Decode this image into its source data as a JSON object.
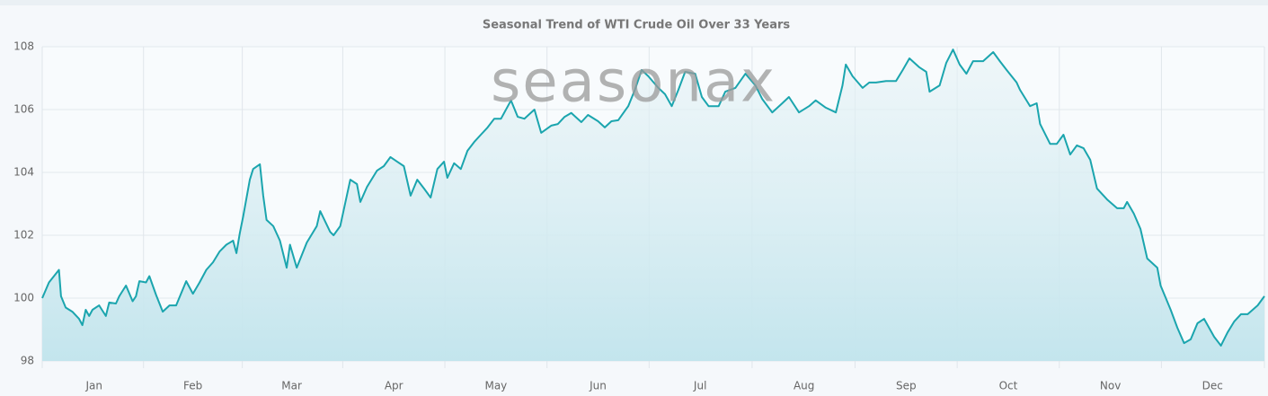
{
  "chart_data": {
    "type": "line",
    "title": "Seasonal Trend of WTI Crude Oil Over 33 Years",
    "watermark": "seasonax",
    "x": [
      0,
      2,
      5,
      5.6,
      7,
      9,
      11,
      12,
      13,
      14,
      15,
      17,
      19,
      20,
      22,
      23,
      25,
      27,
      28,
      29,
      31,
      32,
      34,
      36,
      38,
      40,
      43,
      45,
      47,
      49,
      51,
      53,
      55,
      57,
      58,
      59,
      60,
      62,
      63,
      65,
      66,
      67,
      69,
      71,
      73,
      74,
      76,
      79,
      82,
      83,
      86,
      87,
      89,
      92,
      94,
      95,
      97,
      100,
      102,
      104,
      106,
      108,
      110,
      112,
      114,
      116,
      118,
      120,
      121,
      123,
      125,
      127,
      129,
      131,
      133,
      135,
      137,
      140,
      142,
      144,
      147,
      149,
      152,
      154,
      156,
      158,
      161,
      163,
      166,
      168,
      170,
      172,
      175,
      177,
      179,
      181,
      184,
      186,
      188,
      190,
      192,
      195,
      197,
      199,
      202,
      204,
      207,
      210,
      213,
      215,
      218,
      221,
      223,
      226,
      229,
      231,
      234,
      237,
      239,
      240,
      242,
      245,
      247,
      249,
      252,
      255,
      257,
      259,
      262,
      264,
      265,
      268,
      270,
      272,
      274,
      276,
      278,
      281,
      284,
      286,
      288,
      291,
      292,
      295,
      297,
      298,
      301,
      303,
      305,
      307,
      309,
      311,
      313,
      315,
      318,
      321,
      323,
      324,
      326,
      328,
      330,
      333,
      334,
      337,
      339,
      341,
      343,
      345,
      347,
      350,
      352,
      354,
      356,
      358,
      360,
      363,
      365
    ],
    "values": [
      100.0,
      100.5,
      100.9,
      100.06,
      99.7,
      99.57,
      99.34,
      99.14,
      99.63,
      99.43,
      99.63,
      99.77,
      99.43,
      99.86,
      99.83,
      100.06,
      100.4,
      99.9,
      100.06,
      100.54,
      100.5,
      100.7,
      100.1,
      99.57,
      99.77,
      99.77,
      100.54,
      100.14,
      100.5,
      100.9,
      101.14,
      101.49,
      101.7,
      101.83,
      101.43,
      102.06,
      102.6,
      103.77,
      104.11,
      104.26,
      103.26,
      102.49,
      102.29,
      101.83,
      100.97,
      101.7,
      100.97,
      101.77,
      102.29,
      102.77,
      102.11,
      102.0,
      102.29,
      103.77,
      103.63,
      103.06,
      103.54,
      104.06,
      104.2,
      104.49,
      104.34,
      104.2,
      103.26,
      103.77,
      103.49,
      103.2,
      104.11,
      104.34,
      103.83,
      104.29,
      104.11,
      104.69,
      104.97,
      105.2,
      105.43,
      105.71,
      105.71,
      106.29,
      105.77,
      105.71,
      106.0,
      105.26,
      105.49,
      105.54,
      105.77,
      105.89,
      105.6,
      105.83,
      105.63,
      105.43,
      105.63,
      105.66,
      106.11,
      106.63,
      107.26,
      107.06,
      106.69,
      106.49,
      106.11,
      106.63,
      107.2,
      107.14,
      106.4,
      106.11,
      106.11,
      106.57,
      106.69,
      107.14,
      106.77,
      106.34,
      105.91,
      106.2,
      106.4,
      105.91,
      106.11,
      106.29,
      106.06,
      105.91,
      106.77,
      107.43,
      107.06,
      106.69,
      106.86,
      106.86,
      106.91,
      106.91,
      107.26,
      107.63,
      107.34,
      107.2,
      106.57,
      106.77,
      107.49,
      107.91,
      107.43,
      107.14,
      107.54,
      107.54,
      107.83,
      107.54,
      107.26,
      106.86,
      106.63,
      106.11,
      106.2,
      105.54,
      104.91,
      104.91,
      105.2,
      104.57,
      104.86,
      104.77,
      104.4,
      103.49,
      103.14,
      102.86,
      102.86,
      103.06,
      102.69,
      102.2,
      101.26,
      100.97,
      100.4,
      99.63,
      99.06,
      98.57,
      98.69,
      99.2,
      99.34,
      98.77,
      98.49,
      98.91,
      99.26,
      99.49,
      99.49,
      99.77,
      100.06
    ],
    "color": "#1ba5ae",
    "xlim": [
      0,
      365
    ],
    "xticks": [
      {
        "value": 15.5,
        "label": "Jan"
      },
      {
        "value": 45,
        "label": "Feb"
      },
      {
        "value": 74.5,
        "label": "Mar"
      },
      {
        "value": 105,
        "label": "Apr"
      },
      {
        "value": 135.5,
        "label": "May"
      },
      {
        "value": 166,
        "label": "Jun"
      },
      {
        "value": 196.5,
        "label": "Jul"
      },
      {
        "value": 227.5,
        "label": "Aug"
      },
      {
        "value": 258,
        "label": "Sep"
      },
      {
        "value": 288.5,
        "label": "Oct"
      },
      {
        "value": 319,
        "label": "Nov"
      },
      {
        "value": 349.5,
        "label": "Dec"
      }
    ],
    "ylim": [
      98,
      108
    ],
    "yticks": [
      98,
      100,
      102,
      104,
      106,
      108
    ],
    "grid": true
  }
}
